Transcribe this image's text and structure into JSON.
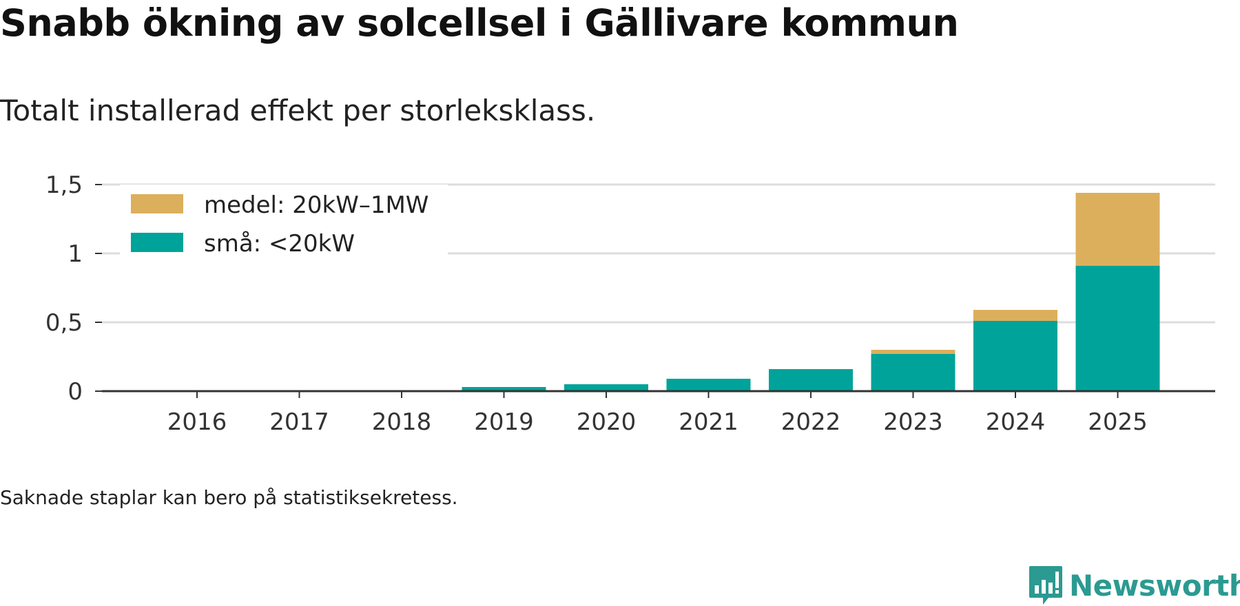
{
  "header": {
    "title": "Snabb ökning av solcellsel i Gällivare kommun",
    "subtitle": "Totalt installerad effekt per storleksklass."
  },
  "footer": {
    "note": "Saknade staplar kan bero på statistiksekretess.",
    "brand": "Newsworthy",
    "brand_icon": "bar-chart-speech-bubble-icon"
  },
  "colors": {
    "small": "#00a39a",
    "medium": "#dcaf5c",
    "grid": "#dddddd",
    "axis": "#333333",
    "brand": "#2b9a91"
  },
  "chart_data": {
    "type": "bar",
    "stacked": true,
    "categories": [
      "2016",
      "2017",
      "2018",
      "2019",
      "2020",
      "2021",
      "2022",
      "2023",
      "2024",
      "2025"
    ],
    "series": [
      {
        "name": "små: <20kW",
        "color": "#00a39a",
        "values": [
          0,
          0,
          0,
          0.03,
          0.05,
          0.09,
          0.16,
          0.27,
          0.51,
          0.91
        ]
      },
      {
        "name": "medel: 20kW–1MW",
        "color": "#dcaf5c",
        "values": [
          0,
          0,
          0,
          0,
          0,
          0,
          0,
          0.03,
          0.08,
          0.53
        ]
      }
    ],
    "yticks": [
      "0",
      "0,5",
      "1",
      "1,5"
    ],
    "ytick_values": [
      0,
      0.5,
      1,
      1.5
    ],
    "ylim": [
      0,
      1.5
    ],
    "grid": true,
    "legend_position": "top-left",
    "legend_order": [
      1,
      0
    ]
  }
}
